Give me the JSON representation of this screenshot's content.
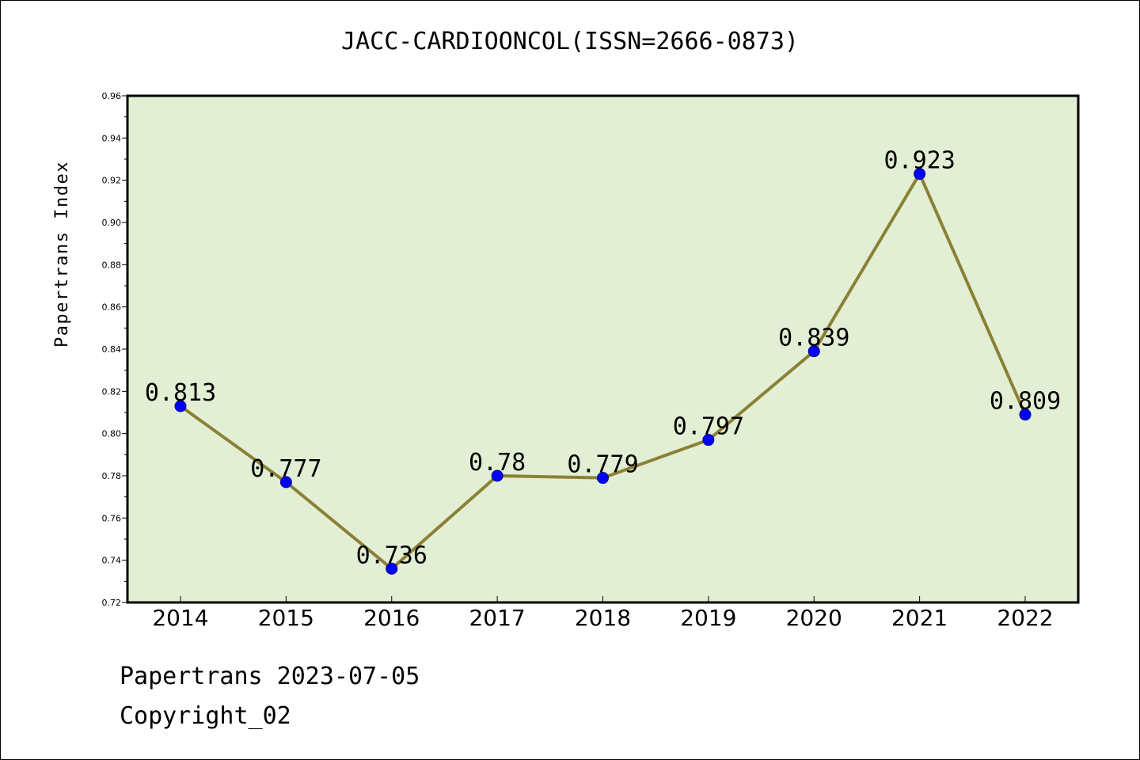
{
  "title": "JACC-CARDIOONCOL(ISSN=2666-0873)",
  "footer": {
    "date_line": "Papertrans 2023-07-05",
    "copyright_line": "Copyright_02"
  },
  "colors": {
    "plot_background": "#e2efd4",
    "line": "#8b8035",
    "marker": "#0000ff",
    "axis": "#000000"
  },
  "chart_data": {
    "type": "line",
    "title": "JACC-CARDIOONCOL(ISSN=2666-0873)",
    "xlabel": "",
    "ylabel": "Papertrans Index",
    "categories": [
      "2014",
      "2015",
      "2016",
      "2017",
      "2018",
      "2019",
      "2020",
      "2021",
      "2022"
    ],
    "values": [
      0.813,
      0.777,
      0.736,
      0.78,
      0.779,
      0.797,
      0.839,
      0.923,
      0.809
    ],
    "data_labels": [
      "0.813",
      "0.777",
      "0.736",
      "0.78",
      "0.779",
      "0.797",
      "0.839",
      "0.923",
      "0.809"
    ],
    "ylim": [
      0.72,
      0.96
    ],
    "yticks": [
      "0.72",
      "0.74",
      "0.76",
      "0.78",
      "0.80",
      "0.82",
      "0.84",
      "0.86",
      "0.88",
      "0.90",
      "0.92",
      "0.94",
      "0.96"
    ],
    "grid": false,
    "legend": "none"
  }
}
